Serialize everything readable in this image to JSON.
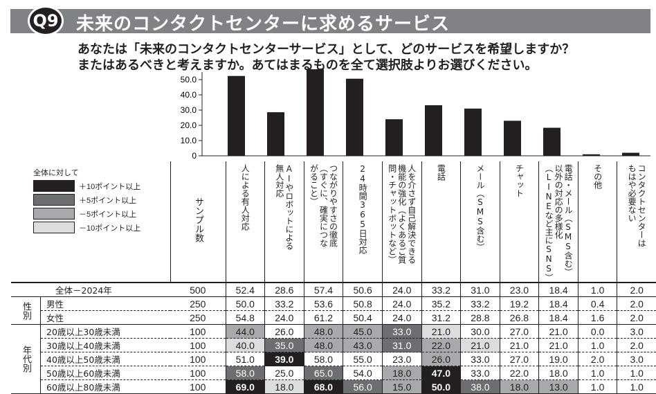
{
  "header": {
    "badge": "Q9",
    "title": "未来のコンタクトセンターに求めるサービス"
  },
  "question": [
    "あなたは「未来のコンタクトセンターサービス」として、どのサービスを希望しますか？",
    "またはあるべきと考えますか。あてはまるものを全て選択肢よりお選びください。"
  ],
  "legend": {
    "title": "全体に対して",
    "items": [
      {
        "label": "＋10ポイント以上",
        "color": "#231f20"
      },
      {
        "label": "＋5ポイント以上",
        "color": "#6d6e71"
      },
      {
        "label": "－5ポイント以上",
        "color": "#a7a9ac"
      },
      {
        "label": "－10ポイント以上",
        "color": "#dcddde"
      }
    ]
  },
  "sample_header": "サンプル数",
  "chart_data": {
    "type": "bar",
    "categories": [
      "人による有人対応",
      "AIやロボットによる無人対応",
      "つながりやすさの徹底（すぐに、確実につながること）",
      "24時間365日対応",
      "人を介さず自己解決できる機能の強化（よくあるご質問・チャットボットなど）",
      "電話",
      "メール（SMS含む）",
      "チャット",
      "電話・メール（SMS含む）以外の対応の多様化（LINEなど主にSNS）",
      "その他",
      "コンタクトセンターはもはや必要ない"
    ],
    "headers": [
      "人による有人対応",
      "AIやロボットによる\n無人対応",
      "つながりやすさの徹底\n（すぐに、確実につな\nがること）",
      "24時間365日対応",
      "人を介さず自己解決できる\n機能の強化（よくあるご質\n問・チャットボットなど）",
      "電話",
      "メール（SMS含む）",
      "チャット",
      "電話・メール（SMS含む）\n以外の対応の多様化\n（LINEなど主にSNS）",
      "その他",
      "コンタクトセンターは\nもはや必要ない"
    ],
    "values": [
      52.4,
      28.6,
      57.4,
      50.6,
      24.0,
      33.2,
      31.0,
      23.0,
      18.4,
      1.0,
      2.0
    ],
    "ylim": [
      0,
      55
    ],
    "yticks": [
      "0",
      "10.0",
      "20.0",
      "30.0",
      "40.0",
      "50.0"
    ]
  },
  "groups": [
    {
      "label": "",
      "rows": [
        {
          "label": "全体－2024年",
          "n": "500",
          "v": [
            "52.4",
            "28.6",
            "57.4",
            "50.6",
            "24.0",
            "33.2",
            "31.0",
            "23.0",
            "18.4",
            "1.0",
            "2.0"
          ],
          "s": [
            0,
            0,
            0,
            0,
            0,
            0,
            0,
            0,
            0,
            0,
            0
          ]
        }
      ]
    },
    {
      "label": "性別",
      "rows": [
        {
          "label": "男性",
          "n": "250",
          "v": [
            "50.0",
            "33.2",
            "53.6",
            "50.8",
            "24.0",
            "35.2",
            "33.2",
            "19.2",
            "18.4",
            "0.4",
            "2.0"
          ],
          "s": [
            0,
            0,
            0,
            0,
            0,
            0,
            0,
            0,
            0,
            0,
            0
          ]
        },
        {
          "label": "女性",
          "n": "250",
          "v": [
            "54.8",
            "24.0",
            "61.2",
            "50.4",
            "24.0",
            "31.2",
            "28.8",
            "26.8",
            "18.4",
            "1.6",
            "2.0"
          ],
          "s": [
            0,
            0,
            0,
            0,
            0,
            0,
            0,
            0,
            0,
            0,
            0
          ]
        }
      ]
    },
    {
      "label": "年代別",
      "rows": [
        {
          "label": "20歳以上30歳未満",
          "n": "100",
          "v": [
            "44.0",
            "26.0",
            "48.0",
            "45.0",
            "33.0",
            "21.0",
            "30.0",
            "27.0",
            "21.0",
            "0.0",
            "3.0"
          ],
          "s": [
            3,
            0,
            3,
            3,
            2,
            4,
            0,
            0,
            0,
            0,
            0
          ]
        },
        {
          "label": "30歳以上40歳未満",
          "n": "100",
          "v": [
            "40.0",
            "35.0",
            "48.0",
            "43.0",
            "31.0",
            "22.0",
            "21.0",
            "21.0",
            "21.0",
            "1.0",
            "2.0"
          ],
          "s": [
            4,
            2,
            3,
            3,
            2,
            3,
            4,
            0,
            0,
            0,
            0
          ]
        },
        {
          "label": "40歳以上50歳未満",
          "n": "100",
          "v": [
            "51.0",
            "39.0",
            "58.0",
            "55.0",
            "23.0",
            "26.0",
            "33.0",
            "27.0",
            "19.0",
            "2.0",
            "3.0"
          ],
          "s": [
            0,
            1,
            0,
            0,
            0,
            3,
            0,
            0,
            0,
            0,
            0
          ]
        },
        {
          "label": "50歳以上60歳未満",
          "n": "100",
          "v": [
            "58.0",
            "25.0",
            "65.0",
            "54.0",
            "18.0",
            "47.0",
            "33.0",
            "22.0",
            "18.0",
            "1.0",
            "1.0"
          ],
          "s": [
            2,
            0,
            2,
            0,
            3,
            1,
            0,
            0,
            0,
            0,
            0
          ]
        },
        {
          "label": "60歳以上80歳未満",
          "n": "100",
          "v": [
            "69.0",
            "18.0",
            "68.0",
            "56.0",
            "15.0",
            "50.0",
            "38.0",
            "18.0",
            "13.0",
            "1.0",
            "1.0"
          ],
          "s": [
            1,
            4,
            1,
            2,
            3,
            1,
            2,
            3,
            3,
            0,
            0
          ]
        }
      ]
    }
  ]
}
